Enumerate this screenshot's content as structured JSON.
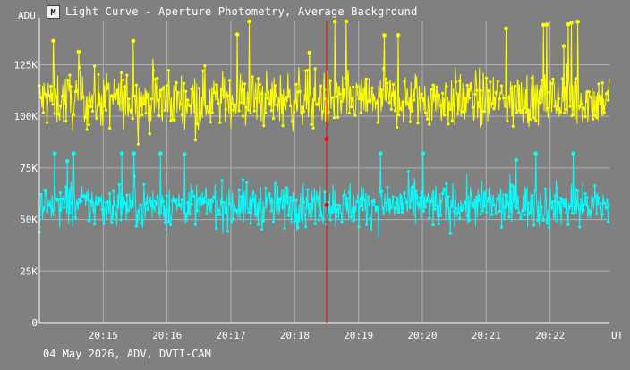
{
  "chart_data": {
    "type": "scatter",
    "title": "Light Curve - Aperture Photometry, Average Background",
    "ylabel": "ADU",
    "xlabel": "UT",
    "y_tick_labels": [
      "0",
      "25K",
      "50K",
      "75K",
      "100K",
      "125K"
    ],
    "y_ticks": [
      0,
      25000,
      50000,
      75000,
      100000,
      125000
    ],
    "ylim": [
      0,
      146000
    ],
    "x_tick_labels": [
      "20:15",
      "20:16",
      "20:17",
      "20:18",
      "20:19",
      "20:20",
      "20:21",
      "20:22"
    ],
    "x_ticks_min": [
      15,
      16,
      17,
      18,
      19,
      20,
      21,
      22
    ],
    "xlim_min": [
      14.0,
      22.93
    ],
    "grid": true,
    "cursor_time_min": 18.5,
    "series": [
      {
        "color": "#ffff00",
        "mean": 108000,
        "spread": 9500,
        "outlier_max": 146000
      },
      {
        "color": "#00ffff",
        "mean": 57000,
        "spread": 7500,
        "outlier_max": 82000
      }
    ],
    "cursor_values": [
      89000,
      57000
    ],
    "colors": {
      "background": "#808080",
      "grid": "#b0b0b0",
      "cursor": "#ff0000",
      "axis": "#ffffff"
    }
  },
  "header": {
    "icon": "app-icon",
    "title": "Light Curve - Aperture Photometry, Average Background"
  },
  "footer": {
    "text": "04 May 2026, ADV, DVTI-CAM"
  }
}
